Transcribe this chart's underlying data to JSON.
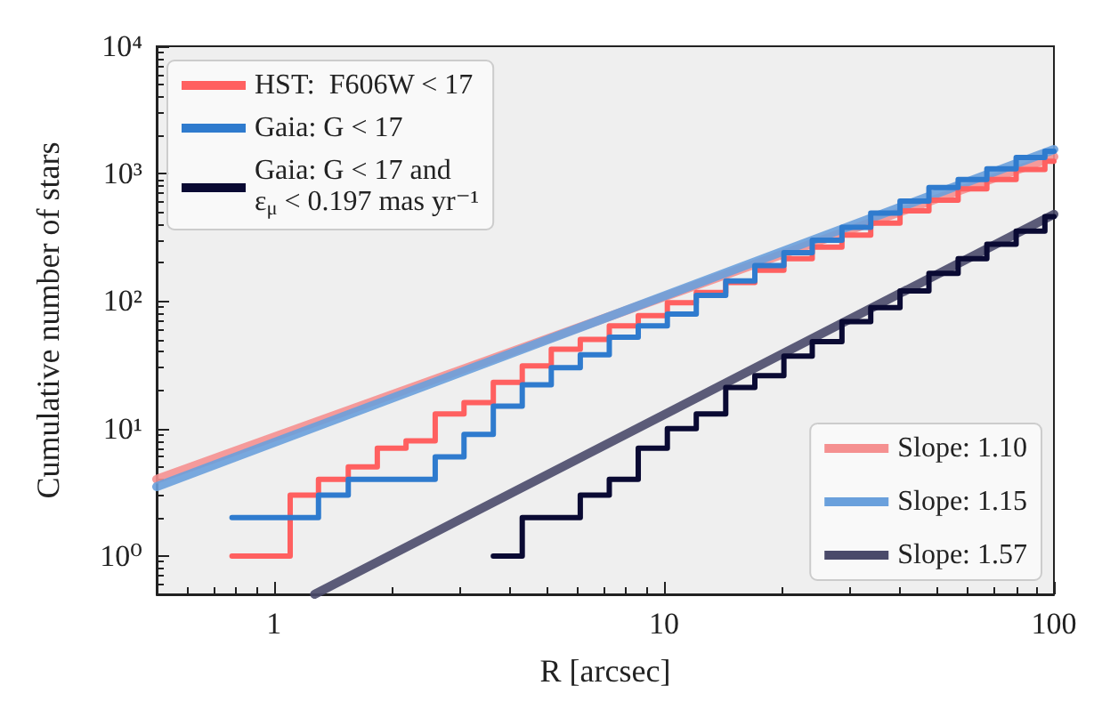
{
  "chart_data": {
    "type": "step",
    "xlabel": "R [arcsec]",
    "ylabel": "Cumulative number of stars",
    "x": [
      0.78,
      0.92,
      1.1,
      1.3,
      1.55,
      1.84,
      2.18,
      2.59,
      3.07,
      3.65,
      4.33,
      5.14,
      6.1,
      7.24,
      8.59,
      10.2,
      12.1,
      14.4,
      17.1,
      20.3,
      24.0,
      28.6,
      33.9,
      40.3,
      47.8,
      56.8,
      67.3,
      80.0,
      94.8,
      100
    ],
    "series": [
      {
        "name": "HST:  F606W < 17",
        "color": "#ff6060",
        "values": [
          1,
          1,
          3,
          4,
          5,
          7,
          8,
          13,
          16,
          23,
          31,
          42,
          50,
          64,
          77,
          97,
          117,
          140,
          175,
          215,
          265,
          330,
          410,
          510,
          620,
          760,
          900,
          1080,
          1250,
          1250
        ]
      },
      {
        "name": "Gaia: G < 17",
        "color": "#2f7bce",
        "values": [
          2,
          2,
          2,
          3,
          4,
          4,
          4,
          6,
          9,
          15,
          22,
          30,
          38,
          52,
          64,
          79,
          111,
          144,
          190,
          240,
          300,
          380,
          490,
          610,
          780,
          900,
          1090,
          1340,
          1500,
          1500
        ]
      },
      {
        "name": "Gaia: G < 17 and\nε$_{μ}$ < 0.197 mas yr⁻¹",
        "color": "#0a0a33",
        "values": [
          null,
          null,
          null,
          null,
          null,
          null,
          null,
          null,
          null,
          1,
          2,
          2,
          3,
          4,
          7,
          10,
          13,
          21,
          26,
          37,
          48,
          69,
          89,
          120,
          165,
          215,
          280,
          355,
          460,
          460
        ]
      },
      {
        "name": "Slope: 1.10",
        "type": "line",
        "color": "#f59090",
        "x": [
          0.5,
          100
        ],
        "values": [
          4,
          1360
        ]
      },
      {
        "name": "Slope: 1.15",
        "type": "line",
        "color": "#6aa0dc",
        "x": [
          0.5,
          100
        ],
        "values": [
          3.5,
          1550
        ]
      },
      {
        "name": "Slope: 1.57",
        "type": "line",
        "color": "#4a4a6a",
        "x": [
          1.27,
          100
        ],
        "values": [
          0.5,
          480
        ]
      }
    ],
    "xlim": [
      0.5,
      100
    ],
    "ylim": [
      0.5,
      10000
    ],
    "xticks": [
      1,
      10,
      100
    ],
    "yticks": [
      {
        "value": 1,
        "label": "10⁰"
      },
      {
        "value": 10,
        "label": "10¹"
      },
      {
        "value": 100,
        "label": "10²"
      },
      {
        "value": 1000,
        "label": "10³"
      },
      {
        "value": 10000,
        "label": "10⁴"
      }
    ],
    "log": "xy",
    "grid": false,
    "legend": [
      "top left",
      "bottom right"
    ]
  }
}
